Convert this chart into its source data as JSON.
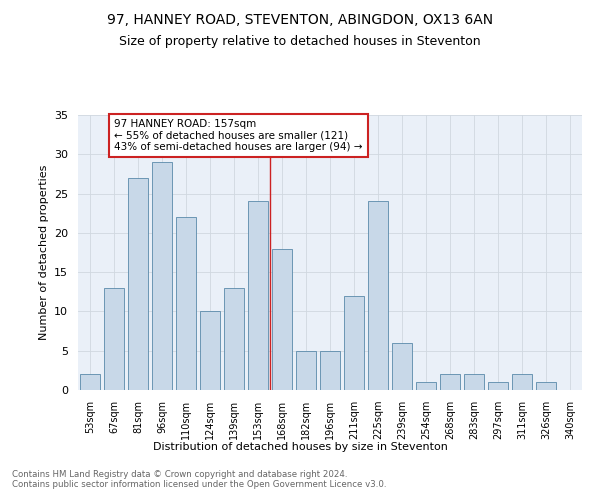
{
  "title1": "97, HANNEY ROAD, STEVENTON, ABINGDON, OX13 6AN",
  "title2": "Size of property relative to detached houses in Steventon",
  "xlabel": "Distribution of detached houses by size in Steventon",
  "ylabel": "Number of detached properties",
  "categories": [
    "53sqm",
    "67sqm",
    "81sqm",
    "96sqm",
    "110sqm",
    "124sqm",
    "139sqm",
    "153sqm",
    "168sqm",
    "182sqm",
    "196sqm",
    "211sqm",
    "225sqm",
    "239sqm",
    "254sqm",
    "268sqm",
    "283sqm",
    "297sqm",
    "311sqm",
    "326sqm",
    "340sqm"
  ],
  "values": [
    2,
    13,
    27,
    29,
    22,
    10,
    13,
    24,
    18,
    5,
    5,
    12,
    24,
    6,
    1,
    2,
    2,
    1,
    2,
    1,
    0
  ],
  "bar_color": "#c8d8e8",
  "bar_edge_color": "#5a8aaa",
  "grid_color": "#d0d8e0",
  "bg_color": "#eaf0f8",
  "vline_color": "#cc2222",
  "annotation_text": "97 HANNEY ROAD: 157sqm\n← 55% of detached houses are smaller (121)\n43% of semi-detached houses are larger (94) →",
  "annotation_box_color": "#ffffff",
  "annotation_box_edge": "#cc2222",
  "footer": "Contains HM Land Registry data © Crown copyright and database right 2024.\nContains public sector information licensed under the Open Government Licence v3.0.",
  "ylim": [
    0,
    35
  ],
  "yticks": [
    0,
    5,
    10,
    15,
    20,
    25,
    30,
    35
  ]
}
